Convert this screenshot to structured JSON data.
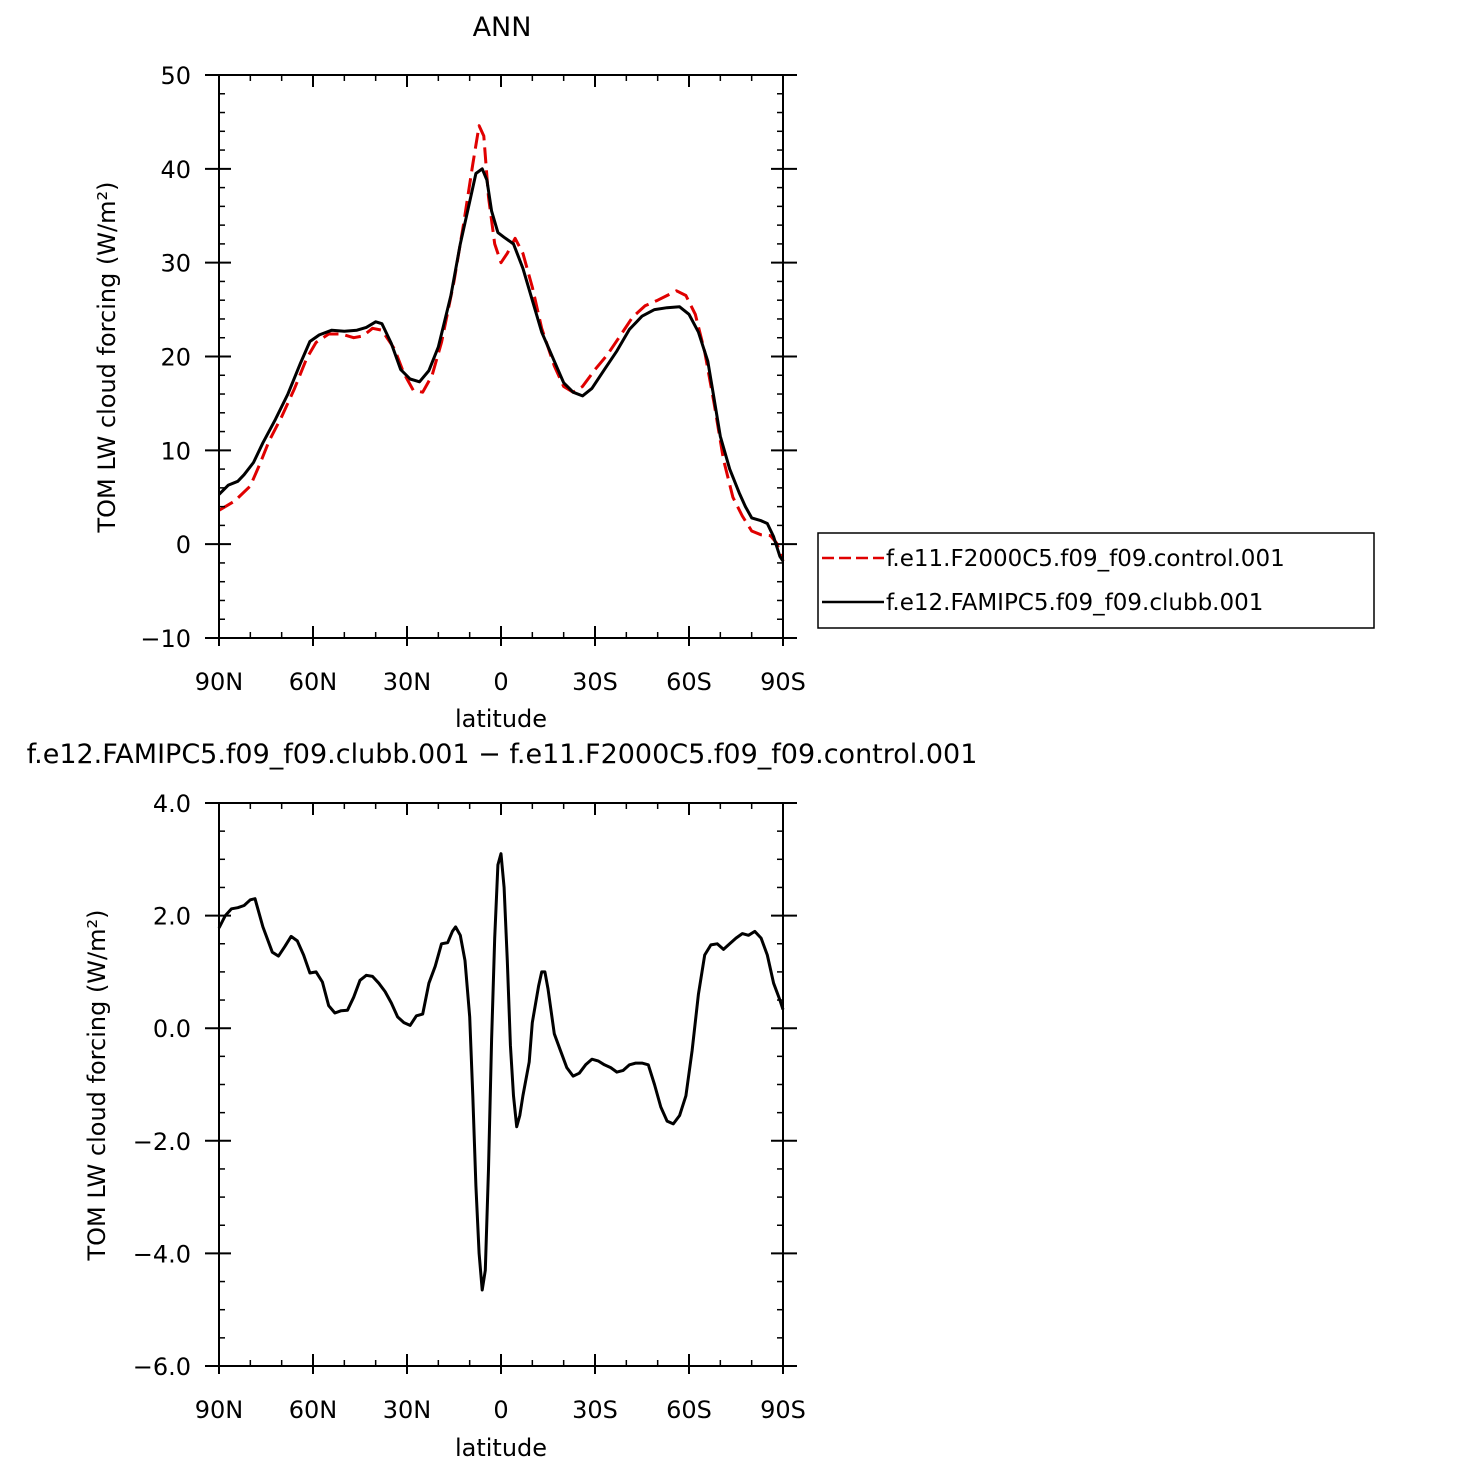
{
  "chart_data": [
    {
      "type": "line",
      "title": "ANN",
      "xlabel": "latitude",
      "ylabel": "TOM LW cloud forcing (W/m²)",
      "xlim": [
        -90,
        90
      ],
      "ylim": [
        -10,
        50
      ],
      "x_ticks": [
        -90,
        -60,
        -30,
        0,
        30,
        60,
        90
      ],
      "x_tick_labels": [
        "90N",
        "60N",
        "30N",
        "0",
        "30S",
        "60S",
        "90S"
      ],
      "y_ticks": [
        -10,
        0,
        10,
        20,
        30,
        40,
        50
      ],
      "y_tick_labels": [
        "−10",
        "0",
        "10",
        "20",
        "30",
        "40",
        "50"
      ],
      "legend_position": "right",
      "series": [
        {
          "name": "f.e11.F2000C5.f09_f09.control.001",
          "color": "#e00000",
          "dash": "dashed",
          "points": [
            [
              -90,
              3.6
            ],
            [
              -85,
              4.6
            ],
            [
              -80,
              6.2
            ],
            [
              -77,
              8.5
            ],
            [
              -74,
              11
            ],
            [
              -70,
              13.6
            ],
            [
              -66,
              16.5
            ],
            [
              -62,
              19.8
            ],
            [
              -59,
              21.5
            ],
            [
              -55,
              22.4
            ],
            [
              -51,
              22.4
            ],
            [
              -47,
              22
            ],
            [
              -44,
              22.2
            ],
            [
              -41,
              23
            ],
            [
              -38,
              22.8
            ],
            [
              -34,
              20.8
            ],
            [
              -31,
              18.2
            ],
            [
              -28,
              16.4
            ],
            [
              -25,
              16.2
            ],
            [
              -22,
              18
            ],
            [
              -19,
              21.5
            ],
            [
              -15,
              28
            ],
            [
              -12,
              34
            ],
            [
              -9,
              40.5
            ],
            [
              -7,
              44.6
            ],
            [
              -5.5,
              43.5
            ],
            [
              -4,
              37
            ],
            [
              -2,
              32
            ],
            [
              0,
              30
            ],
            [
              2,
              31
            ],
            [
              4.5,
              32.6
            ],
            [
              7,
              31
            ],
            [
              10,
              27.4
            ],
            [
              13,
              23
            ],
            [
              17,
              19
            ],
            [
              20,
              16.8
            ],
            [
              23,
              16.2
            ],
            [
              26,
              16.8
            ],
            [
              30,
              18.6
            ],
            [
              34,
              20.2
            ],
            [
              38,
              22.2
            ],
            [
              42,
              24.2
            ],
            [
              46,
              25.4
            ],
            [
              50,
              26
            ],
            [
              53,
              26.5
            ],
            [
              56,
              27
            ],
            [
              59,
              26.5
            ],
            [
              62,
              24.5
            ],
            [
              65,
              20.5
            ],
            [
              68,
              15
            ],
            [
              71,
              9
            ],
            [
              74,
              5
            ],
            [
              77,
              3
            ],
            [
              80,
              1.4
            ],
            [
              83,
              1
            ],
            [
              86,
              0.9
            ],
            [
              88,
              0.1
            ],
            [
              90,
              -1.8
            ]
          ]
        },
        {
          "name": "f.e12.FAMIPC5.f09_f09.clubb.001",
          "color": "#000000",
          "dash": "solid",
          "points": [
            [
              -90,
              5.3
            ],
            [
              -87,
              6.3
            ],
            [
              -84,
              6.7
            ],
            [
              -82,
              7.4
            ],
            [
              -79,
              8.7
            ],
            [
              -76,
              10.8
            ],
            [
              -72,
              13.3
            ],
            [
              -68,
              16
            ],
            [
              -64,
              19.3
            ],
            [
              -61,
              21.6
            ],
            [
              -58,
              22.3
            ],
            [
              -54,
              22.8
            ],
            [
              -50,
              22.7
            ],
            [
              -46,
              22.8
            ],
            [
              -43,
              23.1
            ],
            [
              -40,
              23.7
            ],
            [
              -38,
              23.5
            ],
            [
              -35,
              21.4
            ],
            [
              -32,
              18.6
            ],
            [
              -29,
              17.6
            ],
            [
              -26,
              17.3
            ],
            [
              -23,
              18.5
            ],
            [
              -20,
              21
            ],
            [
              -16,
              26.5
            ],
            [
              -13,
              32
            ],
            [
              -10,
              36.5
            ],
            [
              -8,
              39.5
            ],
            [
              -6,
              40
            ],
            [
              -4.5,
              38.8
            ],
            [
              -3,
              35.5
            ],
            [
              -1,
              33.2
            ],
            [
              1,
              32.7
            ],
            [
              4,
              32
            ],
            [
              7,
              29.4
            ],
            [
              10,
              26
            ],
            [
              13,
              22.6
            ],
            [
              17,
              19.5
            ],
            [
              20,
              17.2
            ],
            [
              23,
              16.2
            ],
            [
              26,
              15.8
            ],
            [
              29,
              16.6
            ],
            [
              33,
              18.6
            ],
            [
              37,
              20.6
            ],
            [
              41,
              22.9
            ],
            [
              45,
              24.3
            ],
            [
              49,
              25
            ],
            [
              53,
              25.2
            ],
            [
              57,
              25.3
            ],
            [
              60,
              24.5
            ],
            [
              63,
              22.6
            ],
            [
              66,
              19.5
            ],
            [
              68,
              15.5
            ],
            [
              70,
              11.5
            ],
            [
              73,
              8
            ],
            [
              76,
              5.5
            ],
            [
              78,
              4
            ],
            [
              80,
              2.8
            ],
            [
              83,
              2.5
            ],
            [
              85,
              2.2
            ],
            [
              87,
              0.8
            ],
            [
              89,
              -1.3
            ],
            [
              90,
              -1.8
            ]
          ]
        }
      ]
    },
    {
      "type": "line",
      "title": "f.e12.FAMIPC5.f09_f09.clubb.001 − f.e11.F2000C5.f09_f09.control.001",
      "xlabel": "latitude",
      "ylabel": "TOM LW cloud forcing (W/m²)",
      "xlim": [
        -90,
        90
      ],
      "ylim": [
        -6,
        4
      ],
      "x_ticks": [
        -90,
        -60,
        -30,
        0,
        30,
        60,
        90
      ],
      "x_tick_labels": [
        "90N",
        "60N",
        "30N",
        "0",
        "30S",
        "60S",
        "90S"
      ],
      "y_ticks": [
        -6,
        -4,
        -2,
        0,
        2,
        4
      ],
      "y_tick_labels": [
        "−6.0",
        "−4.0",
        "−2.0",
        "0.0",
        "2.0",
        "4.0"
      ],
      "series": [
        {
          "color": "#000000",
          "dash": "solid",
          "points": [
            [
              -90,
              1.78
            ],
            [
              -88,
              2.0
            ],
            [
              -86,
              2.12
            ],
            [
              -84,
              2.14
            ],
            [
              -82,
              2.18
            ],
            [
              -80,
              2.28
            ],
            [
              -78.5,
              2.3
            ],
            [
              -76,
              1.8
            ],
            [
              -73,
              1.35
            ],
            [
              -71,
              1.28
            ],
            [
              -69,
              1.45
            ],
            [
              -67,
              1.63
            ],
            [
              -65,
              1.55
            ],
            [
              -63,
              1.3
            ],
            [
              -61,
              0.98
            ],
            [
              -59,
              1.0
            ],
            [
              -57,
              0.82
            ],
            [
              -55,
              0.4
            ],
            [
              -53,
              0.27
            ],
            [
              -51,
              0.31
            ],
            [
              -49,
              0.32
            ],
            [
              -47,
              0.55
            ],
            [
              -45,
              0.85
            ],
            [
              -43,
              0.94
            ],
            [
              -41,
              0.92
            ],
            [
              -39,
              0.8
            ],
            [
              -37,
              0.65
            ],
            [
              -35,
              0.45
            ],
            [
              -33,
              0.2
            ],
            [
              -31,
              0.1
            ],
            [
              -29,
              0.05
            ],
            [
              -27,
              0.22
            ],
            [
              -25,
              0.25
            ],
            [
              -23,
              0.8
            ],
            [
              -21,
              1.1
            ],
            [
              -19,
              1.5
            ],
            [
              -17,
              1.52
            ],
            [
              -15.5,
              1.72
            ],
            [
              -14.5,
              1.8
            ],
            [
              -13,
              1.65
            ],
            [
              -11.5,
              1.2
            ],
            [
              -10,
              0.2
            ],
            [
              -9,
              -1.2
            ],
            [
              -8,
              -2.8
            ],
            [
              -7,
              -4.0
            ],
            [
              -6,
              -4.65
            ],
            [
              -5,
              -4.3
            ],
            [
              -4,
              -2.5
            ],
            [
              -3,
              -0.2
            ],
            [
              -2,
              1.6
            ],
            [
              -1,
              2.9
            ],
            [
              0,
              3.1
            ],
            [
              1,
              2.5
            ],
            [
              2,
              1.2
            ],
            [
              3,
              -0.3
            ],
            [
              4,
              -1.2
            ],
            [
              5,
              -1.75
            ],
            [
              6,
              -1.55
            ],
            [
              7,
              -1.2
            ],
            [
              9,
              -0.6
            ],
            [
              10,
              0.1
            ],
            [
              12,
              0.75
            ],
            [
              13,
              1.0
            ],
            [
              14,
              1.0
            ],
            [
              15,
              0.7
            ],
            [
              17,
              -0.1
            ],
            [
              19,
              -0.4
            ],
            [
              21,
              -0.7
            ],
            [
              23,
              -0.85
            ],
            [
              25,
              -0.8
            ],
            [
              27,
              -0.65
            ],
            [
              29,
              -0.55
            ],
            [
              31,
              -0.58
            ],
            [
              33,
              -0.65
            ],
            [
              35,
              -0.7
            ],
            [
              37,
              -0.78
            ],
            [
              39,
              -0.75
            ],
            [
              41,
              -0.65
            ],
            [
              43,
              -0.62
            ],
            [
              45,
              -0.62
            ],
            [
              47,
              -0.65
            ],
            [
              49,
              -1.0
            ],
            [
              51,
              -1.4
            ],
            [
              53,
              -1.65
            ],
            [
              55,
              -1.7
            ],
            [
              57,
              -1.55
            ],
            [
              59,
              -1.2
            ],
            [
              61,
              -0.4
            ],
            [
              63,
              0.6
            ],
            [
              65,
              1.3
            ],
            [
              67,
              1.48
            ],
            [
              69,
              1.5
            ],
            [
              71,
              1.4
            ],
            [
              73,
              1.5
            ],
            [
              75,
              1.6
            ],
            [
              77,
              1.68
            ],
            [
              79,
              1.65
            ],
            [
              81,
              1.72
            ],
            [
              83,
              1.6
            ],
            [
              85,
              1.3
            ],
            [
              87,
              0.8
            ],
            [
              89,
              0.5
            ],
            [
              90,
              0.33
            ]
          ]
        }
      ]
    }
  ]
}
